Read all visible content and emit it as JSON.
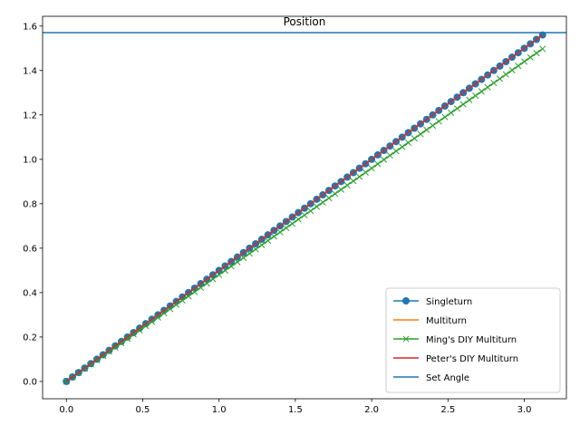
{
  "chart_data": {
    "type": "line",
    "title": "Position",
    "xlabel": "",
    "ylabel": "",
    "xlim": [
      -0.156,
      3.276
    ],
    "ylim": [
      -0.078,
      1.644
    ],
    "xticks": [
      0.0,
      0.5,
      1.0,
      1.5,
      2.0,
      2.5,
      3.0
    ],
    "xtick_labels": [
      "0.0",
      "0.5",
      "1.0",
      "1.5",
      "2.0",
      "2.5",
      "3.0"
    ],
    "yticks": [
      0.0,
      0.2,
      0.4,
      0.6,
      0.8,
      1.0,
      1.2,
      1.4,
      1.6
    ],
    "ytick_labels": [
      "0.0",
      "0.2",
      "0.4",
      "0.6",
      "0.8",
      "1.0",
      "1.2",
      "1.4",
      "1.6"
    ],
    "grid": false,
    "legend_position": "lower-right",
    "x": {
      "start": 0.0,
      "stop": 3.12,
      "step": 0.04
    },
    "series": [
      {
        "name": "Singleturn",
        "slope": 0.5,
        "color": "#1f77b4",
        "marker": "circle",
        "linewidth": 1.5
      },
      {
        "name": "Multiturn",
        "slope": 0.5,
        "color": "#ff7f0e",
        "marker": "none",
        "linewidth": 1.5
      },
      {
        "name": "Ming's DIY Multiturn",
        "slope": 0.48,
        "color": "#2ca02c",
        "marker": "x",
        "linewidth": 1.5
      },
      {
        "name": "Peter's DIY Multiturn",
        "slope": 0.5,
        "color": "#d62728",
        "marker": "none",
        "linewidth": 1.5
      }
    ],
    "hlines": [
      {
        "name": "Set Angle",
        "y": 1.5708,
        "color": "#1f77b4"
      }
    ]
  }
}
